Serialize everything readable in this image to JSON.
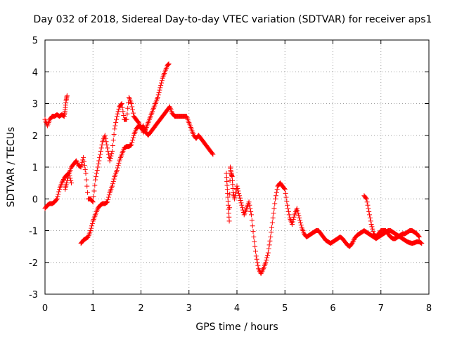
{
  "chart_data": {
    "type": "scatter",
    "title": "Day 032 of 2018, Sidereal Day-to-day VTEC variation (SDTVAR) for receiver aps1",
    "xlabel": "GPS time / hours",
    "ylabel": "SDTVAR / TECUs",
    "xlim": [
      0,
      8
    ],
    "ylim": [
      -3,
      5
    ],
    "xticks": [
      "0",
      "1",
      "2",
      "3",
      "4",
      "5",
      "6",
      "7",
      "8"
    ],
    "yticks": [
      "-3",
      "-2",
      "-1",
      "0",
      "1",
      "2",
      "3",
      "4",
      "5"
    ],
    "grid": true,
    "marker": "plus",
    "color": "#ff0000",
    "series": [
      {
        "segments": [
          {
            "x": [
              0.0,
              0.05,
              0.1,
              0.15,
              0.2,
              0.25,
              0.3,
              0.35,
              0.4,
              0.45,
              0.5,
              0.55
            ],
            "y": [
              -0.3,
              -0.2,
              -0.15,
              -0.15,
              -0.1,
              0.0,
              0.3,
              0.5,
              0.65,
              0.75,
              0.8,
              0.5
            ]
          },
          {
            "x": [
              0.0,
              0.05,
              0.1,
              0.15,
              0.2,
              0.25,
              0.3,
              0.35,
              0.4,
              0.42,
              0.44,
              0.46
            ],
            "y": [
              2.5,
              2.3,
              2.5,
              2.6,
              2.6,
              2.65,
              2.6,
              2.65,
              2.6,
              2.8,
              3.1,
              3.25
            ]
          },
          {
            "x": [
              0.42,
              0.45,
              0.5,
              0.55,
              0.6,
              0.65,
              0.7,
              0.75,
              0.8,
              0.85,
              0.9,
              0.95,
              1.0,
              1.05,
              1.1,
              1.15,
              1.2,
              1.25,
              1.3,
              1.35,
              1.4,
              1.45,
              1.5,
              1.55,
              1.6,
              1.65,
              1.7,
              1.75,
              1.8,
              1.85,
              1.9,
              1.95,
              2.0,
              2.05,
              2.1,
              2.15,
              2.2,
              2.25,
              2.3,
              2.35,
              2.4,
              2.45,
              2.5,
              2.55,
              2.6,
              2.65,
              2.7,
              2.75,
              2.8,
              2.85,
              2.9,
              2.95,
              3.0,
              3.05,
              3.1,
              3.15,
              3.2,
              3.25,
              3.3,
              3.35,
              3.4,
              3.45,
              3.5
            ],
            "y": [
              0.3,
              0.5,
              0.8,
              1.0,
              1.1,
              1.2,
              1.05,
              1.0,
              1.3,
              0.8,
              0.0,
              0.0,
              -0.1,
              0.6,
              1.0,
              1.4,
              1.8,
              2.0,
              1.6,
              1.2,
              1.5,
              2.2,
              2.6,
              2.9,
              3.0,
              2.5,
              2.5,
              3.2,
              3.0,
              2.6,
              2.5,
              2.4,
              2.2,
              2.3,
              2.1,
              2.0,
              2.1,
              2.2,
              2.3,
              2.4,
              2.5,
              2.6,
              2.7,
              2.8,
              2.9,
              2.7,
              2.6,
              2.6,
              2.6,
              2.6,
              2.6,
              2.6,
              2.4,
              2.2,
              2.0,
              1.9,
              2.0,
              1.9,
              1.8,
              1.7,
              1.6,
              1.5,
              1.4
            ]
          },
          {
            "x": [
              0.75,
              0.8,
              0.85,
              0.9,
              0.95,
              1.0,
              1.05,
              1.1,
              1.15,
              1.2,
              1.25,
              1.3,
              1.35,
              1.4,
              1.45,
              1.5,
              1.55,
              1.6,
              1.65,
              1.7,
              1.75,
              1.8,
              1.85,
              1.9,
              1.95,
              2.0,
              2.05,
              2.1,
              2.15,
              2.2,
              2.25,
              2.3,
              2.35,
              2.4,
              2.45,
              2.5,
              2.55,
              2.58
            ],
            "y": [
              -1.4,
              -1.3,
              -1.25,
              -1.2,
              -1.0,
              -0.7,
              -0.5,
              -0.3,
              -0.2,
              -0.15,
              -0.15,
              -0.1,
              0.2,
              0.4,
              0.7,
              0.9,
              1.2,
              1.4,
              1.6,
              1.65,
              1.65,
              1.7,
              2.0,
              2.2,
              2.3,
              2.3,
              2.1,
              2.2,
              2.4,
              2.6,
              2.8,
              3.0,
              3.2,
              3.5,
              3.8,
              4.0,
              4.2,
              4.25
            ]
          },
          {
            "x": [
              3.78,
              3.8,
              3.82,
              3.84,
              3.86,
              3.88,
              3.9,
              3.92,
              3.95,
              4.0,
              4.05,
              4.1,
              4.15,
              4.2,
              4.25,
              4.3,
              4.35,
              4.4,
              4.45,
              4.5,
              4.55,
              4.6,
              4.65,
              4.7,
              4.75,
              4.8,
              4.85,
              4.9,
              4.95,
              5.0,
              5.05,
              5.1,
              5.15,
              5.2,
              5.25,
              5.3,
              5.35,
              5.4,
              5.45,
              5.5,
              5.55,
              5.6,
              5.65,
              5.7,
              5.75,
              5.8,
              5.85,
              5.9,
              5.95,
              6.0,
              6.05,
              6.1,
              6.15,
              6.2,
              6.25,
              6.3,
              6.35,
              6.4,
              6.45,
              6.5,
              6.55,
              6.6,
              6.65,
              6.7,
              6.75,
              6.8,
              6.85,
              6.9,
              6.95,
              7.0,
              7.05,
              7.1,
              7.15,
              7.2,
              7.25,
              7.3,
              7.35,
              7.4,
              7.45,
              7.5,
              7.55,
              7.6,
              7.65,
              7.7,
              7.75,
              7.8,
              7.85
            ],
            "y": [
              0.8,
              0.3,
              -0.2,
              -0.7,
              1.0,
              0.8,
              0.7,
              0.2,
              0.0,
              0.4,
              0.1,
              -0.2,
              -0.5,
              -0.3,
              -0.1,
              -0.5,
              -1.2,
              -1.8,
              -2.2,
              -2.35,
              -2.2,
              -2.0,
              -1.7,
              -1.2,
              -0.6,
              0.0,
              0.4,
              0.5,
              0.4,
              0.3,
              -0.2,
              -0.6,
              -0.8,
              -0.5,
              -0.3,
              -0.6,
              -0.9,
              -1.1,
              -1.2,
              -1.15,
              -1.1,
              -1.05,
              -1.0,
              -1.0,
              -1.1,
              -1.2,
              -1.3,
              -1.35,
              -1.4,
              -1.35,
              -1.3,
              -1.25,
              -1.2,
              -1.25,
              -1.35,
              -1.45,
              -1.5,
              -1.4,
              -1.25,
              -1.15,
              -1.1,
              -1.05,
              -1.0,
              -1.05,
              -1.1,
              -1.15,
              -1.2,
              -1.25,
              -1.2,
              -1.15,
              -1.1,
              -1.05,
              -1.0,
              -1.0,
              -1.05,
              -1.1,
              -1.15,
              -1.2,
              -1.25,
              -1.3,
              -1.35,
              -1.38,
              -1.4,
              -1.38,
              -1.35,
              -1.35,
              -1.4
            ]
          },
          {
            "x": [
              6.65,
              6.7,
              6.75,
              6.8,
              6.85,
              6.9,
              6.95,
              7.0,
              7.05,
              7.1,
              7.15,
              7.2,
              7.25,
              7.3,
              7.35,
              7.4,
              7.45,
              7.5,
              7.55,
              7.6,
              7.65,
              7.7,
              7.75,
              7.8
            ],
            "y": [
              0.1,
              0.0,
              -0.4,
              -0.8,
              -1.1,
              -1.2,
              -1.1,
              -1.0,
              -1.0,
              -1.0,
              -1.1,
              -1.2,
              -1.25,
              -1.25,
              -1.2,
              -1.15,
              -1.1,
              -1.1,
              -1.05,
              -1.0,
              -1.0,
              -1.05,
              -1.1,
              -1.2
            ]
          }
        ]
      }
    ]
  }
}
